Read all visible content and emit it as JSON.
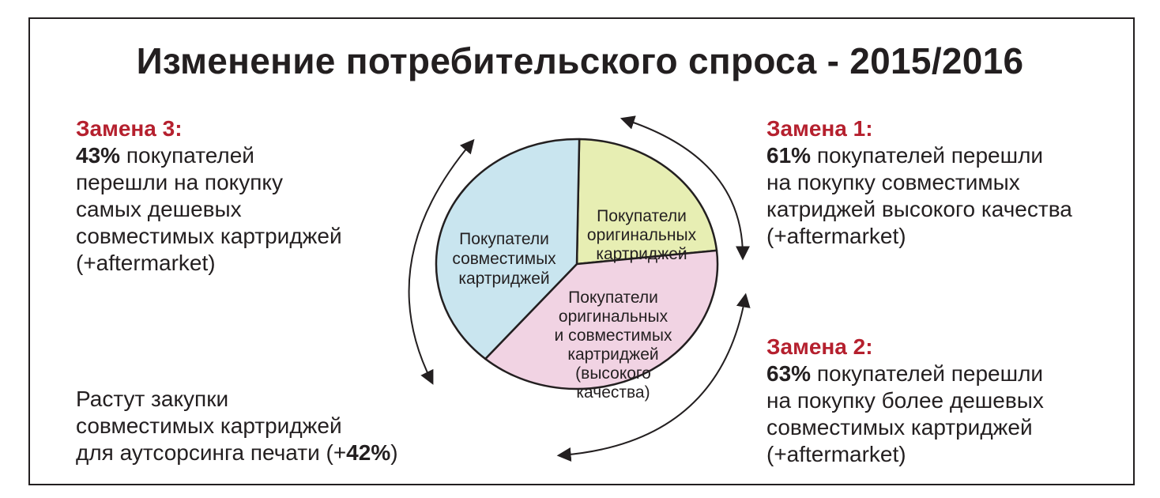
{
  "title": "Изменение потребительского спроса - 2015/2016",
  "colors": {
    "accent": "#b5202e",
    "slice_compatible": "#c9e5ef",
    "slice_original": "#e7eeb3",
    "slice_mixed": "#f1d3e3",
    "stroke": "#231f20"
  },
  "left_top": {
    "head": "Замена 3:",
    "pct": "43%",
    "lines": [
      "покупателей",
      "перешли на покупку",
      "самых дешевых",
      "совместимых картриджей",
      "(+aftermarket)"
    ]
  },
  "left_bottom": {
    "lines": [
      "Растут закупки",
      "совместимых картриджей",
      "для аутсорсинга печати (+"
    ],
    "pct": "42%",
    "tail": ")"
  },
  "right_top": {
    "head": "Замена 1:",
    "pct": "61%",
    "lines": [
      "покупателей перешли",
      "на покупку совместимых",
      "катриджей высокого качества",
      "(+aftermarket)"
    ]
  },
  "right_bottom": {
    "head": "Замена 2:",
    "pct": "63%",
    "lines": [
      "покупателей перешли",
      "на покупку более дешевых",
      "совместимых картриджей",
      "(+aftermarket)"
    ]
  },
  "chart_data": {
    "type": "pie",
    "slices": [
      {
        "name": "compatible",
        "label_lines": [
          "Покупатели",
          "совместимых",
          "картриджей"
        ],
        "share": 0.39
      },
      {
        "name": "original",
        "label_lines": [
          "Покупатели",
          "оригинальных",
          "картриджей"
        ],
        "share": 0.23
      },
      {
        "name": "mixed",
        "label_lines": [
          "Покупатели",
          "оригинальных",
          "и совместимых",
          "картриджей",
          "(высокого",
          "качества)"
        ],
        "share": 0.38
      }
    ],
    "arrows": [
      "compatible-to-original",
      "original-to-mixed",
      "mixed-to-compatible"
    ]
  }
}
